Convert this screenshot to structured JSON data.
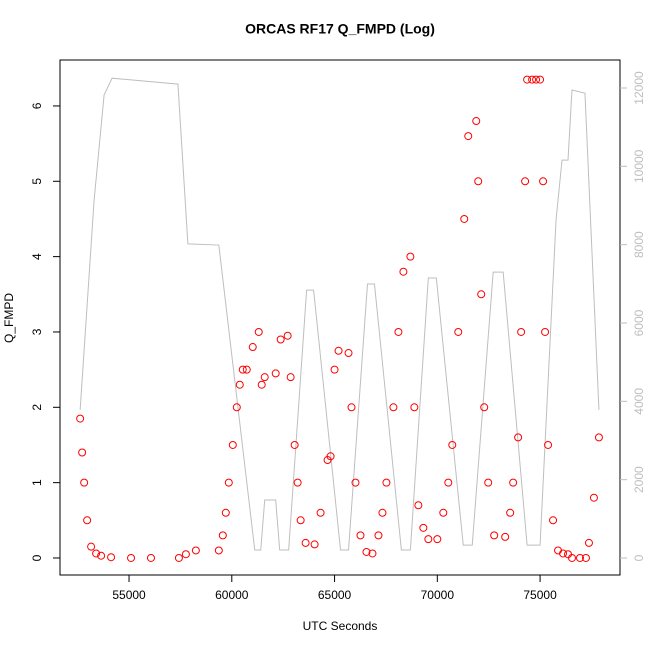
{
  "chart_data": {
    "type": "scatter",
    "title": "ORCAS RF17 Q_FMPD (Log)",
    "x_label": "UTC Seconds",
    "y_label": "Q_FMPD",
    "xlim": [
      51641,
      78889
    ],
    "ylim": [
      -0.226,
      6.61
    ],
    "y2lim": [
      -434,
      12715
    ],
    "xticks": [
      55000,
      60000,
      65000,
      70000,
      75000
    ],
    "yticks": [
      0,
      1,
      2,
      3,
      4,
      5,
      6
    ],
    "y2ticks": [
      0,
      2000,
      4000,
      6000,
      8000,
      10000,
      12000
    ],
    "series": [
      {
        "type": "line",
        "axis": "y2",
        "color": "#bebebe",
        "x": [
          52621,
          53301,
          53786,
          54175,
          57379,
          57864,
          59369,
          61117,
          61408,
          61602,
          62136,
          62330,
          62767,
          63641,
          63981,
          65291,
          65680,
          66602,
          66942,
          68252,
          68689,
          69563,
          69951,
          71262,
          71699,
          72718,
          73204,
          74369,
          75000,
          75777,
          76068,
          76359,
          76553,
          77184,
          77864
        ],
        "values": [
          3780,
          9140,
          11820,
          12250,
          12100,
          8020,
          7990,
          204,
          204,
          1480,
          1480,
          204,
          204,
          6840,
          6840,
          204,
          204,
          6995,
          6995,
          204,
          204,
          7150,
          7150,
          330,
          330,
          7300,
          7300,
          330,
          330,
          8630,
          10160,
          10160,
          11950,
          11870,
          3780
        ]
      },
      {
        "type": "scatter",
        "marker": "circle",
        "color": "#ff0000",
        "x": [
          52621,
          52718,
          52816,
          52961,
          53155,
          53398,
          53641,
          54126,
          55097,
          56068,
          57427,
          57767,
          58252,
          59369,
          59563,
          59709,
          59854,
          60049,
          60243,
          60388,
          60534,
          60728,
          61019,
          61311,
          61456,
          61602,
          62136,
          62379,
          62718,
          62864,
          63058,
          63204,
          63350,
          63592,
          64029,
          64320,
          64660,
          64806,
          65000,
          65194,
          65680,
          65825,
          66019,
          66262,
          66553,
          66845,
          67136,
          67330,
          67524,
          67864,
          68107,
          68350,
          68689,
          68883,
          69078,
          69320,
          69563,
          70000,
          70291,
          70534,
          70728,
          71019,
          71311,
          71505,
          71894,
          71990,
          72136,
          72282,
          72476,
          72767,
          73301,
          73544,
          73689,
          73932,
          74078,
          74272,
          74369,
          74612,
          74806,
          75000,
          75146,
          75243,
          75388,
          75631,
          75874,
          76117,
          76359,
          76553,
          76942,
          77233,
          77379,
          77621,
          77864
        ],
        "values": [
          1.85,
          1.4,
          1.0,
          0.5,
          0.15,
          0.06,
          0.03,
          0.01,
          0.0,
          0.0,
          0.0,
          0.05,
          0.1,
          0.1,
          0.3,
          0.6,
          1.0,
          1.5,
          2.0,
          2.3,
          2.5,
          2.5,
          2.8,
          3.0,
          2.3,
          2.4,
          2.45,
          2.9,
          2.95,
          2.4,
          1.5,
          1.0,
          0.5,
          0.2,
          0.18,
          0.6,
          1.3,
          1.35,
          2.5,
          2.75,
          2.72,
          2.0,
          1.0,
          0.3,
          0.08,
          0.06,
          0.3,
          0.6,
          1.0,
          2.0,
          3.0,
          3.8,
          4.0,
          2.0,
          0.7,
          0.4,
          0.25,
          0.25,
          0.6,
          1.0,
          1.5,
          3.0,
          4.5,
          5.6,
          5.8,
          5.0,
          3.5,
          2.0,
          1.0,
          0.3,
          0.28,
          0.6,
          1.0,
          1.6,
          3.0,
          5.0,
          6.35,
          6.35,
          6.35,
          6.35,
          5.0,
          3.0,
          1.5,
          0.5,
          0.1,
          0.06,
          0.05,
          0.0,
          0.0,
          0.0,
          0.2,
          0.8,
          1.6
        ]
      }
    ]
  }
}
